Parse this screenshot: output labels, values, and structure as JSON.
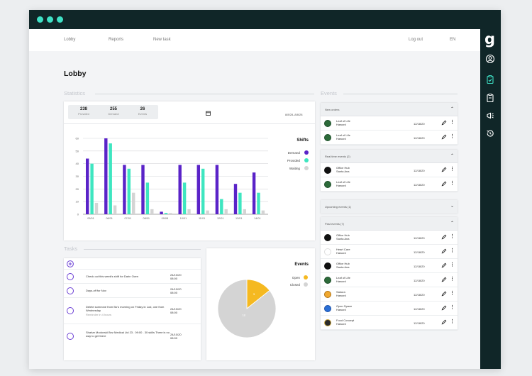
{
  "nav": {
    "lobby": "Lobby",
    "reports": "Reports",
    "new_task": "New task",
    "logout": "Log out",
    "lang": "EN"
  },
  "sidebar": {
    "logo": "g",
    "icons": [
      "user-circle-icon",
      "clipboard-check-icon",
      "clipboard-icon",
      "megaphone-icon",
      "history-icon"
    ]
  },
  "page": {
    "title": "Lobby"
  },
  "sections": {
    "statistics": "Statistics",
    "events": "Events",
    "tasks": "Tasks"
  },
  "stats": [
    {
      "value": "238",
      "label": "Provided"
    },
    {
      "value": "255",
      "label": "Demand"
    },
    {
      "value": "26",
      "label": "Events"
    }
  ],
  "date_range": "8/8/28–8/8/28",
  "shifts_chart": {
    "title": "Shifts",
    "legend": [
      {
        "name": "Demand",
        "color": "#5a23c8"
      },
      {
        "name": "Provided",
        "color": "#3ee6c0"
      },
      {
        "name": "Waiting",
        "color": "#d4d4d4"
      }
    ]
  },
  "events_chart": {
    "title": "Events",
    "legend": [
      {
        "name": "Open",
        "color": "#f5b921"
      },
      {
        "name": "Closed",
        "color": "#d4d4d4"
      }
    ],
    "slice_labels": [
      "3",
      "18"
    ]
  },
  "chart_data": [
    {
      "type": "bar",
      "title": "Shifts",
      "categories": [
        "05/01",
        "06/01",
        "07/01",
        "08/01",
        "09/08",
        "10/01",
        "11/01",
        "12/01",
        "13/01",
        "14/01"
      ],
      "series": [
        {
          "name": "Demand",
          "values": [
            44,
            60,
            39,
            39,
            2,
            39,
            39,
            39,
            24,
            33
          ]
        },
        {
          "name": "Provided",
          "values": [
            40,
            56,
            36,
            25,
            1,
            25,
            36,
            12,
            17,
            17
          ]
        },
        {
          "name": "Waiting",
          "values": [
            9,
            7,
            17,
            4,
            1,
            4,
            3,
            4,
            4,
            3
          ]
        }
      ],
      "ylim": [
        0,
        60
      ],
      "yticks": [
        "0",
        "10",
        "20",
        "30",
        "40",
        "50",
        "60"
      ],
      "grid": true,
      "legend": "top-right"
    },
    {
      "type": "pie",
      "title": "Events",
      "categories": [
        "Open",
        "Closed"
      ],
      "values": [
        3,
        18
      ],
      "legend": "top-right"
    }
  ],
  "events": {
    "groups": [
      {
        "title": "New orders",
        "rows": [
          {
            "line1": "Leaf of Life",
            "line2": "Haword",
            "date": "12/18/20",
            "avatar": "leaf"
          },
          {
            "line1": "Leaf of Life",
            "line2": "Haword",
            "date": "12/18/20",
            "avatar": "leaf"
          }
        ]
      },
      {
        "title": "Real time events (2)",
        "rows": [
          {
            "line1": "Office Hub",
            "line2": "Santa Ana",
            "date": "12/18/20",
            "avatar": "office"
          },
          {
            "line1": "Leaf of Life",
            "line2": "Haword",
            "date": "12/18/20",
            "avatar": "leaf"
          }
        ]
      },
      {
        "title": "Upcoming events (1)",
        "rows": []
      },
      {
        "title": "Past events (7)",
        "rows": [
          {
            "line1": "Office Hub",
            "line2": "Santa Ana",
            "date": "12/18/20",
            "avatar": "office"
          },
          {
            "line1": "Heart Care",
            "line2": "Haword",
            "date": "12/18/20",
            "avatar": "heart"
          },
          {
            "line1": "Office Hub",
            "line2": "Santa Ana",
            "date": "12/18/20",
            "avatar": "office"
          },
          {
            "line1": "Leaf of Life",
            "line2": "Haword",
            "date": "12/18/20",
            "avatar": "leaf"
          },
          {
            "line1": "Sakura",
            "line2": "Haword",
            "date": "12/18/20",
            "avatar": "sakura"
          },
          {
            "line1": "Open Space",
            "line2": "Haword",
            "date": "12/18/20",
            "avatar": "space"
          },
          {
            "line1": "Food Concept",
            "line2": "Haword",
            "date": "12/18/20",
            "avatar": "food"
          }
        ]
      }
    ]
  },
  "tasks": [
    {
      "text": "Check out this week's shift for Darin Ocen",
      "sub": "",
      "date": "24/10/20 08:00"
    },
    {
      "text": "Days-off for Nov",
      "sub": "",
      "date": "24/10/20 08:00"
    },
    {
      "text": "Delete someone from Bo's morning on Friday in Lod, one from Wednesday",
      "sub": "Reminder in 4 hours",
      "date": "24/10/20 08:00"
    },
    {
      "text": "Shahar Modovski Bez Medical Ltd 23 . 09:00 . 30 skills There is no way to get there",
      "sub": "",
      "date": "24/10/20 08:00"
    }
  ]
}
